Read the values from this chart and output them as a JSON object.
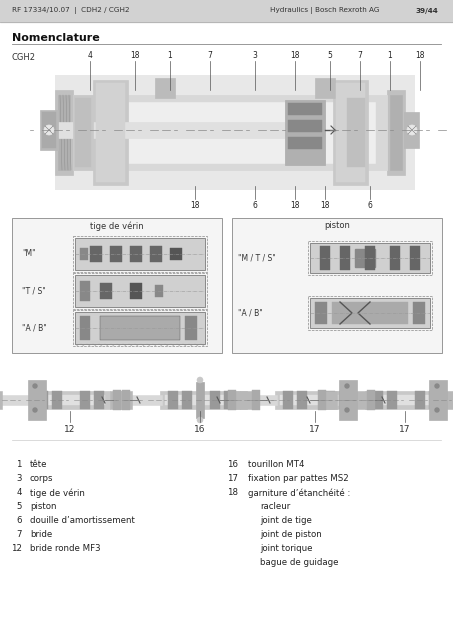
{
  "bg_color": "#e0e0e0",
  "page_bg": "#ffffff",
  "header_bg": "#d2d2d2",
  "header_left": "RF 17334/10.07  |  CDH2 / CGH2",
  "header_right": "Hydraulics | Bosch Rexroth AG",
  "header_page": "39/44",
  "section_title": "Nomenclature",
  "diagram_label": "CGH2",
  "seal_left_title": "tige de vérin",
  "seal_right_title": "piston",
  "seal_left_labels": [
    "\"M\"",
    "\"T / S\"",
    "\"A / B\""
  ],
  "seal_right_labels": [
    "\"M / T / S\"",
    "\"A / B\""
  ],
  "bottom_labels": [
    "12",
    "16",
    "17",
    "17"
  ],
  "legend_left": [
    [
      "1",
      "tête"
    ],
    [
      "3",
      "corps"
    ],
    [
      "4",
      "tige de vérin"
    ],
    [
      "5",
      "piston"
    ],
    [
      "6",
      "douille d’amortissement"
    ],
    [
      "7",
      "bride"
    ],
    [
      "12",
      "bride ronde MF3"
    ]
  ],
  "legend_right": [
    [
      "16",
      "tourillon MT4"
    ],
    [
      "17",
      "fixation par pattes MS2"
    ],
    [
      "18",
      "garniture d’étanchéité :"
    ],
    [
      "",
      "racleur"
    ],
    [
      "",
      "joint de tige"
    ],
    [
      "",
      "joint de piston"
    ],
    [
      "",
      "joint torique"
    ],
    [
      "",
      "bague de guidage"
    ]
  ],
  "annot_top": [
    [
      "4",
      90
    ],
    [
      "18",
      135
    ],
    [
      "1",
      170
    ],
    [
      "7",
      210
    ],
    [
      "3",
      255
    ],
    [
      "18",
      295
    ],
    [
      "5",
      330
    ],
    [
      "7",
      360
    ],
    [
      "1",
      390
    ],
    [
      "18",
      420
    ]
  ],
  "annot_bot": [
    [
      "18",
      195
    ],
    [
      "6",
      255
    ],
    [
      "18",
      295
    ],
    [
      "18",
      325
    ],
    [
      "6",
      370
    ]
  ]
}
